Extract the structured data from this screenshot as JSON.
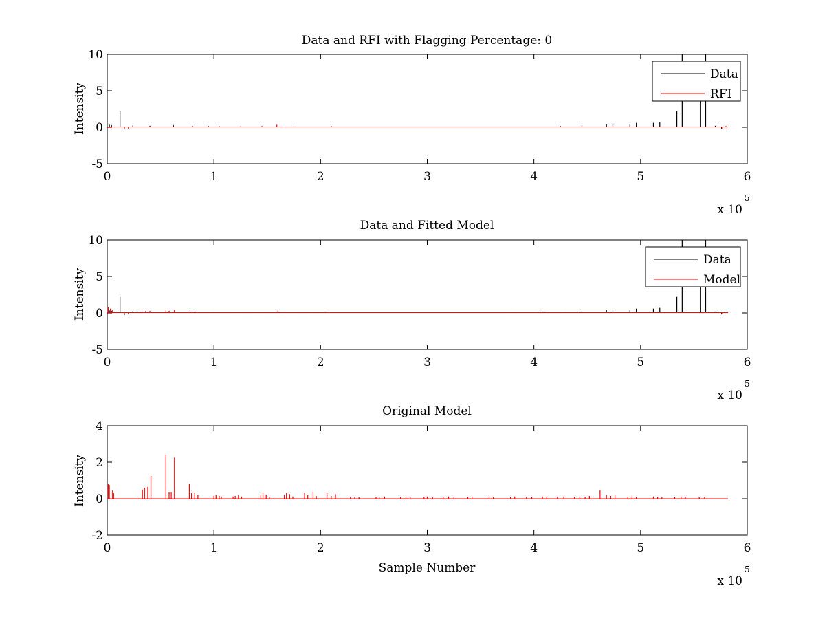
{
  "chart_data": [
    {
      "type": "line",
      "title": "Data and RFI with Flagging Percentage: 0",
      "xlabel": "",
      "ylabel": "Intensity",
      "xlim": [
        0,
        6
      ],
      "ylim": [
        -5,
        10
      ],
      "xticks": [
        "0",
        "1",
        "2",
        "3",
        "4",
        "5",
        "6"
      ],
      "yticks": [
        "-5",
        "0",
        "5",
        "10"
      ],
      "x_exponent": {
        "base": "x 10",
        "power": "5"
      },
      "x_units": "x 10^5 samples",
      "baseline": 0.05,
      "x_end": 5.82,
      "legend": {
        "location": "top-right",
        "entries": [
          {
            "name": "Data",
            "color": "#000000"
          },
          {
            "name": "RFI",
            "color": "#ff0000"
          }
        ]
      },
      "grid": false,
      "series": [
        {
          "name": "Data",
          "color": "#000000",
          "spikes": [
            [
              0.02,
              0.35
            ],
            [
              0.04,
              0.3
            ],
            [
              0.12,
              2.2
            ],
            [
              0.16,
              -0.3
            ],
            [
              0.2,
              -0.2
            ],
            [
              0.24,
              0.25
            ],
            [
              0.4,
              0.2
            ],
            [
              0.62,
              0.3
            ],
            [
              0.8,
              0.15
            ],
            [
              0.95,
              0.15
            ],
            [
              1.05,
              0.15
            ],
            [
              1.25,
              0.12
            ],
            [
              1.45,
              0.15
            ],
            [
              1.75,
              0.12
            ],
            [
              2.1,
              0.15
            ],
            [
              4.25,
              0.15
            ],
            [
              4.45,
              0.25
            ],
            [
              4.68,
              0.4
            ],
            [
              4.74,
              0.35
            ],
            [
              4.9,
              0.45
            ],
            [
              4.96,
              0.6
            ],
            [
              5.12,
              0.6
            ],
            [
              5.18,
              0.7
            ],
            [
              5.34,
              2.2
            ],
            [
              5.39,
              11.0
            ],
            [
              5.56,
              7.0
            ],
            [
              5.61,
              10.5
            ],
            [
              5.7,
              0.2
            ],
            [
              5.76,
              -0.2
            ],
            [
              5.8,
              0.15
            ]
          ]
        },
        {
          "name": "RFI",
          "color": "#ff0000",
          "spikes": [
            [
              1.59,
              0.35
            ]
          ]
        }
      ]
    },
    {
      "type": "line",
      "title": "Data and Fitted Model",
      "xlabel": "",
      "ylabel": "Intensity",
      "xlim": [
        0,
        6
      ],
      "ylim": [
        -5,
        10
      ],
      "xticks": [
        "0",
        "1",
        "2",
        "3",
        "4",
        "5",
        "6"
      ],
      "yticks": [
        "-5",
        "0",
        "5",
        "10"
      ],
      "x_exponent": {
        "base": "x 10",
        "power": "5"
      },
      "x_units": "x 10^5 samples",
      "baseline": 0.05,
      "x_end": 5.82,
      "legend": {
        "location": "top-right",
        "entries": [
          {
            "name": "Data",
            "color": "#000000"
          },
          {
            "name": "Model",
            "color": "#ff0000"
          }
        ]
      },
      "grid": false,
      "series": [
        {
          "name": "Data",
          "color": "#000000",
          "spikes": [
            [
              0.02,
              0.35
            ],
            [
              0.04,
              0.3
            ],
            [
              0.12,
              2.2
            ],
            [
              0.16,
              -0.3
            ],
            [
              0.2,
              -0.2
            ],
            [
              0.24,
              0.25
            ],
            [
              1.59,
              0.2
            ],
            [
              4.45,
              0.25
            ],
            [
              4.68,
              0.4
            ],
            [
              4.74,
              0.35
            ],
            [
              4.9,
              0.45
            ],
            [
              4.96,
              0.6
            ],
            [
              5.12,
              0.6
            ],
            [
              5.18,
              0.7
            ],
            [
              5.34,
              2.2
            ],
            [
              5.39,
              11.0
            ],
            [
              5.56,
              7.0
            ],
            [
              5.61,
              10.5
            ],
            [
              5.7,
              0.2
            ],
            [
              5.76,
              -0.2
            ],
            [
              5.8,
              0.15
            ]
          ]
        },
        {
          "name": "Model",
          "color": "#ff0000",
          "spikes": [
            [
              0.01,
              0.8
            ],
            [
              0.03,
              0.6
            ],
            [
              0.05,
              0.4
            ],
            [
              0.33,
              0.2
            ],
            [
              0.36,
              0.25
            ],
            [
              0.4,
              0.3
            ],
            [
              0.55,
              0.35
            ],
            [
              0.58,
              0.3
            ],
            [
              0.63,
              0.45
            ],
            [
              0.77,
              0.2
            ],
            [
              0.8,
              0.15
            ],
            [
              0.83,
              0.15
            ],
            [
              1.0,
              0.1
            ],
            [
              1.2,
              0.1
            ],
            [
              1.45,
              0.1
            ],
            [
              1.6,
              0.3
            ],
            [
              1.7,
              0.1
            ],
            [
              1.95,
              0.1
            ],
            [
              2.08,
              0.15
            ],
            [
              2.55,
              0.08
            ],
            [
              3.0,
              0.08
            ],
            [
              3.65,
              0.08
            ],
            [
              3.8,
              0.1
            ],
            [
              3.92,
              0.1
            ],
            [
              4.05,
              0.15
            ],
            [
              4.1,
              0.12
            ],
            [
              4.3,
              0.1
            ],
            [
              4.45,
              0.12
            ],
            [
              4.5,
              0.1
            ],
            [
              4.65,
              0.1
            ],
            [
              4.8,
              0.1
            ],
            [
              4.95,
              0.1
            ]
          ]
        }
      ]
    },
    {
      "type": "line",
      "title": "Original Model",
      "xlabel": "Sample Number",
      "ylabel": "Intensity",
      "xlim": [
        0,
        6
      ],
      "ylim": [
        -2,
        4
      ],
      "xticks": [
        "0",
        "1",
        "2",
        "3",
        "4",
        "5",
        "6"
      ],
      "yticks": [
        "-2",
        "0",
        "2",
        "4"
      ],
      "x_exponent": {
        "base": "x 10",
        "power": "5"
      },
      "x_units": "x 10^5 samples",
      "baseline": 0,
      "x_end": 5.82,
      "legend": null,
      "grid": false,
      "series": [
        {
          "name": "Model",
          "color": "#ff0000",
          "spikes": [
            [
              0.01,
              0.8
            ],
            [
              0.02,
              0.75
            ],
            [
              0.05,
              0.45
            ],
            [
              0.06,
              0.3
            ],
            [
              0.33,
              0.5
            ],
            [
              0.35,
              0.6
            ],
            [
              0.38,
              0.65
            ],
            [
              0.41,
              1.25
            ],
            [
              0.55,
              2.4
            ],
            [
              0.58,
              0.35
            ],
            [
              0.6,
              0.35
            ],
            [
              0.63,
              2.25
            ],
            [
              0.77,
              0.8
            ],
            [
              0.79,
              0.3
            ],
            [
              0.82,
              0.3
            ],
            [
              0.85,
              0.2
            ],
            [
              1.0,
              0.15
            ],
            [
              1.02,
              0.2
            ],
            [
              1.05,
              0.15
            ],
            [
              1.07,
              0.12
            ],
            [
              1.18,
              0.12
            ],
            [
              1.2,
              0.15
            ],
            [
              1.23,
              0.2
            ],
            [
              1.26,
              0.12
            ],
            [
              1.44,
              0.2
            ],
            [
              1.46,
              0.3
            ],
            [
              1.49,
              0.2
            ],
            [
              1.52,
              0.1
            ],
            [
              1.66,
              0.2
            ],
            [
              1.68,
              0.3
            ],
            [
              1.71,
              0.25
            ],
            [
              1.74,
              0.12
            ],
            [
              1.85,
              0.3
            ],
            [
              1.88,
              0.2
            ],
            [
              1.93,
              0.35
            ],
            [
              1.96,
              0.15
            ],
            [
              2.06,
              0.3
            ],
            [
              2.1,
              0.15
            ],
            [
              2.14,
              0.25
            ],
            [
              2.28,
              0.1
            ],
            [
              2.32,
              0.1
            ],
            [
              2.36,
              0.08
            ],
            [
              2.52,
              0.1
            ],
            [
              2.55,
              0.1
            ],
            [
              2.6,
              0.12
            ],
            [
              2.75,
              0.1
            ],
            [
              2.8,
              0.12
            ],
            [
              2.84,
              0.08
            ],
            [
              2.97,
              0.1
            ],
            [
              3.0,
              0.12
            ],
            [
              3.05,
              0.08
            ],
            [
              3.15,
              0.1
            ],
            [
              3.2,
              0.12
            ],
            [
              3.25,
              0.1
            ],
            [
              3.38,
              0.1
            ],
            [
              3.42,
              0.12
            ],
            [
              3.58,
              0.1
            ],
            [
              3.62,
              0.08
            ],
            [
              3.78,
              0.1
            ],
            [
              3.82,
              0.12
            ],
            [
              3.93,
              0.1
            ],
            [
              3.98,
              0.1
            ],
            [
              4.08,
              0.12
            ],
            [
              4.12,
              0.1
            ],
            [
              4.22,
              0.1
            ],
            [
              4.28,
              0.12
            ],
            [
              4.38,
              0.1
            ],
            [
              4.43,
              0.12
            ],
            [
              4.48,
              0.1
            ],
            [
              4.52,
              0.15
            ],
            [
              4.62,
              0.45
            ],
            [
              4.68,
              0.2
            ],
            [
              4.72,
              0.15
            ],
            [
              4.76,
              0.2
            ],
            [
              4.88,
              0.1
            ],
            [
              4.92,
              0.15
            ],
            [
              4.96,
              0.1
            ],
            [
              5.12,
              0.12
            ],
            [
              5.16,
              0.1
            ],
            [
              5.2,
              0.1
            ],
            [
              5.32,
              0.1
            ],
            [
              5.38,
              0.12
            ],
            [
              5.42,
              0.1
            ],
            [
              5.55,
              0.08
            ],
            [
              5.6,
              0.1
            ]
          ]
        }
      ]
    }
  ]
}
